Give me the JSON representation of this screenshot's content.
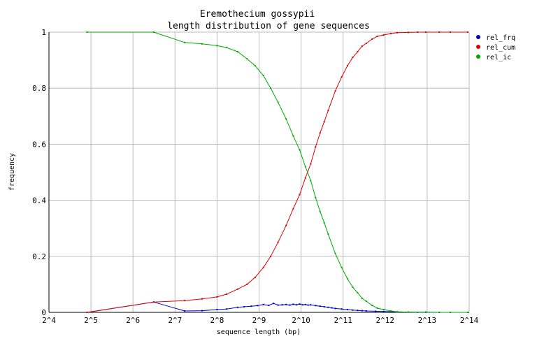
{
  "chart_data": {
    "type": "line",
    "title": "Eremothecium gossypii",
    "subtitle": "length distribution of gene sequences",
    "xlabel": "sequence length (bp)",
    "ylabel": "frequency",
    "x_scale": "log2",
    "xlim": [
      16,
      16384
    ],
    "ylim": [
      0,
      1
    ],
    "x_ticks": [
      "2^4",
      "2^5",
      "2^6",
      "2^7",
      "2^8",
      "2^9",
      "2^10",
      "2^11",
      "2^12",
      "2^13",
      "2^14"
    ],
    "y_ticks": [
      "0",
      "0.2",
      "0.4",
      "0.6",
      "0.8",
      "1"
    ],
    "grid": true,
    "legend_position": "top-right",
    "series": [
      {
        "name": "rel_frq",
        "color": "#0000cc",
        "x": [
          30,
          90,
          150,
          200,
          256,
          300,
          360,
          400,
          450,
          500,
          550,
          600,
          650,
          700,
          750,
          800,
          850,
          900,
          950,
          1000,
          1050,
          1100,
          1150,
          1200,
          1300,
          1400,
          1500,
          1600,
          1700,
          1800,
          2000,
          2200,
          2400,
          2600,
          2800,
          3000,
          3500,
          4000,
          5000,
          6000,
          8000,
          10000,
          12000,
          16000
        ],
        "y": [
          0.0,
          0.037,
          0.005,
          0.006,
          0.01,
          0.012,
          0.018,
          0.02,
          0.022,
          0.024,
          0.028,
          0.025,
          0.032,
          0.026,
          0.027,
          0.028,
          0.026,
          0.029,
          0.027,
          0.03,
          0.027,
          0.028,
          0.026,
          0.027,
          0.024,
          0.022,
          0.02,
          0.018,
          0.016,
          0.014,
          0.012,
          0.01,
          0.008,
          0.007,
          0.006,
          0.005,
          0.004,
          0.003,
          0.002,
          0.001,
          0.001,
          0.0,
          0.0,
          0.0
        ]
      },
      {
        "name": "rel_cum",
        "color": "#dd0000",
        "x": [
          30,
          90,
          150,
          200,
          256,
          300,
          360,
          420,
          480,
          550,
          620,
          700,
          800,
          900,
          1000,
          1100,
          1200,
          1300,
          1400,
          1500,
          1600,
          1800,
          2000,
          2200,
          2400,
          2600,
          2800,
          3000,
          3300,
          3600,
          4000,
          4500,
          5000,
          6000,
          7000,
          8000,
          10000,
          12000,
          16000
        ],
        "y": [
          0.0,
          0.037,
          0.042,
          0.048,
          0.055,
          0.065,
          0.083,
          0.1,
          0.125,
          0.16,
          0.2,
          0.25,
          0.31,
          0.37,
          0.42,
          0.48,
          0.53,
          0.59,
          0.64,
          0.68,
          0.72,
          0.79,
          0.84,
          0.88,
          0.91,
          0.93,
          0.95,
          0.96,
          0.975,
          0.985,
          0.99,
          0.995,
          0.998,
          0.999,
          1.0,
          1.0,
          1.0,
          1.0,
          1.0
        ]
      },
      {
        "name": "rel_ic",
        "color": "#00aa00",
        "x": [
          30,
          90,
          150,
          200,
          256,
          300,
          360,
          420,
          480,
          550,
          620,
          700,
          800,
          900,
          1000,
          1100,
          1200,
          1300,
          1400,
          1500,
          1600,
          1800,
          2000,
          2200,
          2400,
          2600,
          2800,
          3000,
          3300,
          3600,
          4000,
          4500,
          5000,
          6000,
          7000,
          8000,
          10000,
          12000,
          16000
        ],
        "y": [
          1.0,
          1.0,
          0.963,
          0.958,
          0.952,
          0.945,
          0.93,
          0.905,
          0.88,
          0.845,
          0.8,
          0.75,
          0.69,
          0.63,
          0.58,
          0.52,
          0.47,
          0.41,
          0.36,
          0.32,
          0.28,
          0.21,
          0.16,
          0.12,
          0.09,
          0.07,
          0.05,
          0.04,
          0.025,
          0.015,
          0.01,
          0.005,
          0.002,
          0.001,
          0.0,
          0.0,
          0.0,
          0.0,
          0.0
        ]
      }
    ]
  }
}
